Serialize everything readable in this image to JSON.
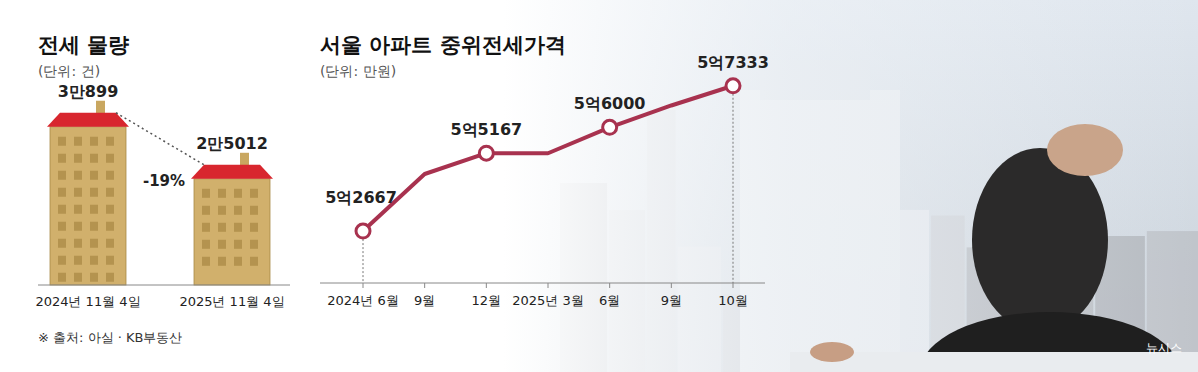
{
  "chart_data": [
    {
      "type": "bar",
      "title": "전세 물량",
      "subtitle": "(단위: 건)",
      "categories": [
        "2024년 11월 4일",
        "2025년 11월 4일"
      ],
      "values": [
        30899,
        25012
      ],
      "value_labels": [
        "3만899",
        "2만5012"
      ],
      "data_labels": true,
      "annotation": "-19%",
      "color": "#d1b06c",
      "ylim": [
        13000,
        32000
      ],
      "tick_labels": "x"
    },
    {
      "type": "line",
      "title": "서울 아파트 중위전세가격",
      "subtitle": "(단위: 만원)",
      "categories": [
        "2024년 6월",
        "9월",
        "12월",
        "2025년 3월",
        "6월",
        "9월",
        "10월"
      ],
      "values": [
        52667,
        54500,
        55167,
        55167,
        56000,
        56700,
        57333
      ],
      "value_labels": [
        "5억2667",
        null,
        "5억5167",
        null,
        "5억6000",
        null,
        "5억7333"
      ],
      "data_labels": true,
      "color": "#a8324f",
      "marker": "circle",
      "ylim": [
        51000,
        58000
      ],
      "tick_labels": "x"
    }
  ],
  "source": "※ 출처: 아실 · KB부동산",
  "credit": "뉴시스"
}
